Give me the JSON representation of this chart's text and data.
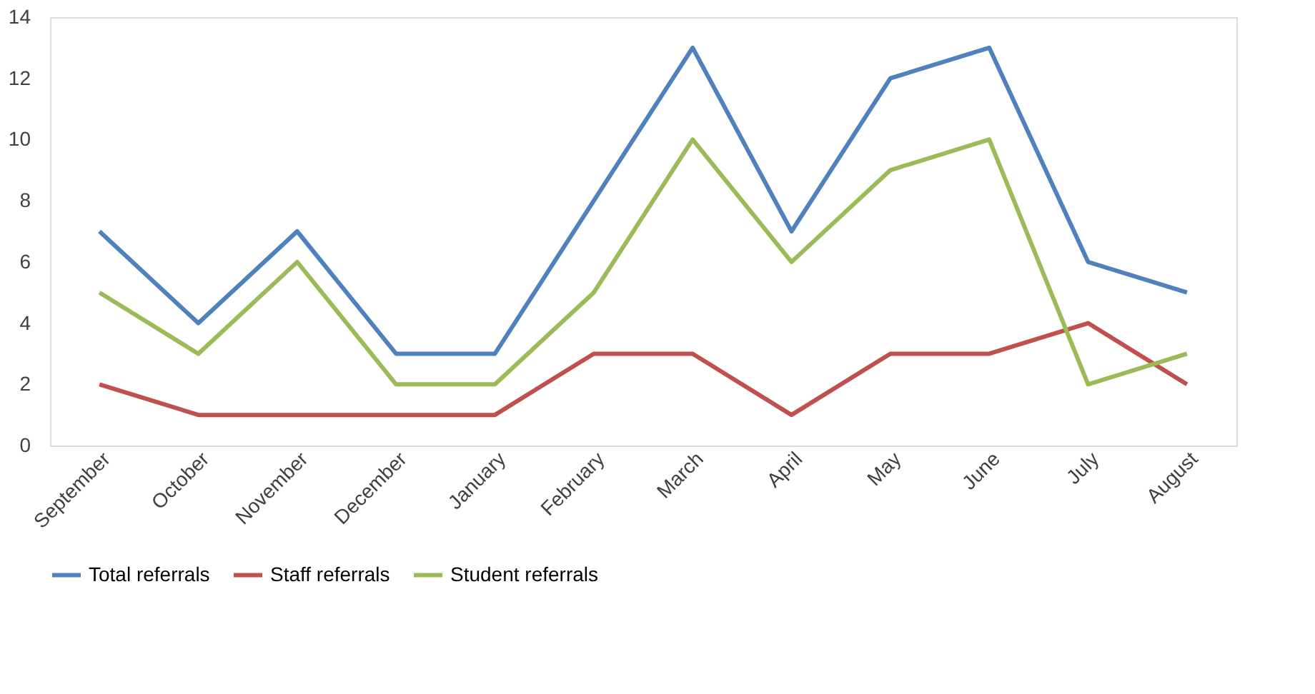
{
  "chart_data": {
    "type": "line",
    "categories": [
      "September",
      "October",
      "November",
      "December",
      "January",
      "February",
      "March",
      "April",
      "May",
      "June",
      "July",
      "August"
    ],
    "series": [
      {
        "name": "Total referrals",
        "color": "#4f81bd",
        "values": [
          7,
          4,
          7,
          3,
          3,
          8,
          13,
          7,
          12,
          13,
          6,
          5
        ]
      },
      {
        "name": "Staff referrals",
        "color": "#c0504d",
        "values": [
          2,
          1,
          1,
          1,
          1,
          3,
          3,
          1,
          3,
          3,
          4,
          2
        ]
      },
      {
        "name": "Student referrals",
        "color": "#9bbb59",
        "values": [
          5,
          3,
          6,
          2,
          2,
          5,
          10,
          6,
          9,
          10,
          2,
          3
        ]
      }
    ],
    "ylim": [
      0,
      14
    ],
    "yticks": [
      0,
      2,
      4,
      6,
      8,
      10,
      12,
      14
    ],
    "grid": false,
    "legend": "bottom",
    "marker": "none",
    "line_style": "solid"
  }
}
